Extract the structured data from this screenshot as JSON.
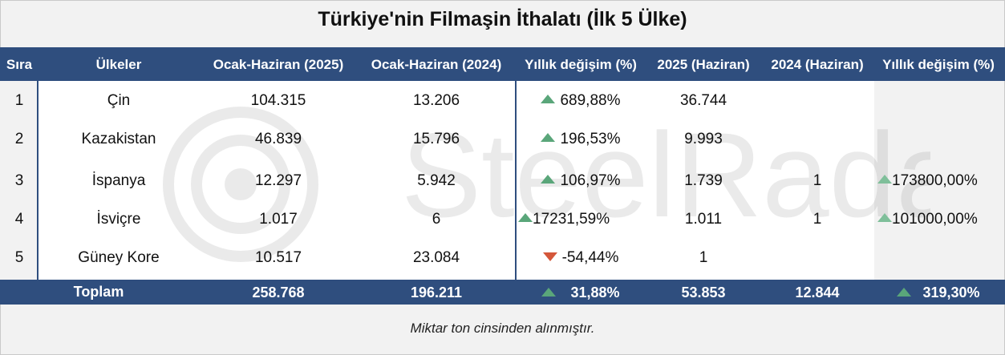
{
  "title": "Türkiye'nin Filmaşin İthalatı (İlk 5 Ülke)",
  "colors": {
    "header": "#2f4e7e",
    "up": "#5aa67a",
    "down": "#d4573a"
  },
  "columns": [
    "Sıra",
    "Ülkeler",
    "Ocak-Haziran (2025)",
    "Ocak-Haziran (2024)",
    "Yıllık değişim (%)",
    "2025 (Haziran)",
    "2024 (Haziran)",
    "Yıllık değişim (%)"
  ],
  "rows": [
    {
      "rank": "1",
      "country": "Çin",
      "jun2025h1": "104.315",
      "jun2024h1": "13.206",
      "change": "689,88%",
      "trend": "up",
      "jun2025": "36.744",
      "jun2024": "",
      "change2": "",
      "trend2": ""
    },
    {
      "rank": "2",
      "country": "Kazakistan",
      "jun2025h1": "46.839",
      "jun2024h1": "15.796",
      "change": "196,53%",
      "trend": "up",
      "jun2025": "9.993",
      "jun2024": "",
      "change2": "",
      "trend2": ""
    },
    {
      "rank": "3",
      "country": "İspanya",
      "jun2025h1": "12.297",
      "jun2024h1": "5.942",
      "change": "106,97%",
      "trend": "up",
      "jun2025": "1.739",
      "jun2024": "1",
      "change2": "173800,00%",
      "trend2": "up"
    },
    {
      "rank": "4",
      "country": "İsviçre",
      "jun2025h1": "1.017",
      "jun2024h1": "6",
      "change": "17231,59%",
      "trend": "up",
      "jun2025": "1.011",
      "jun2024": "1",
      "change2": "101000,00%",
      "trend2": "up"
    },
    {
      "rank": "5",
      "country": "Güney Kore",
      "jun2025h1": "10.517",
      "jun2024h1": "23.084",
      "change": "-54,44%",
      "trend": "down",
      "jun2025": "1",
      "jun2024": "",
      "change2": "",
      "trend2": ""
    }
  ],
  "total": {
    "label": "Toplam",
    "jun2025h1": "258.768",
    "jun2024h1": "196.211",
    "change": "31,88%",
    "jun2025": "53.853",
    "jun2024": "12.844",
    "change2": "319,30%"
  },
  "footnote": "Miktar  ton cinsinden alınmıştır.",
  "watermark": "SteelRadar"
}
